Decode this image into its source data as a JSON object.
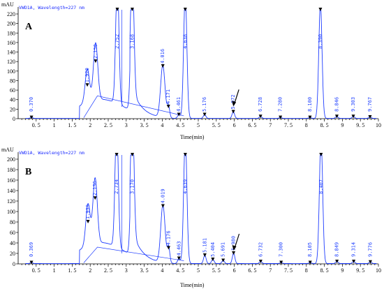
{
  "figure": {
    "y_unit": "mAU",
    "x_title": "Time(min)"
  },
  "chart_data": [
    {
      "panel": "A",
      "type": "line",
      "detector_label": "VWD1A, Wavelength=227 nm",
      "ylim": [
        0,
        220
      ],
      "xlim": [
        0,
        10
      ],
      "yticks": [
        0,
        20,
        40,
        60,
        80,
        100,
        120,
        140,
        160,
        180,
        200,
        220
      ],
      "xticks": [
        0.5,
        1,
        1.5,
        2,
        2.5,
        3,
        3.5,
        4,
        4.5,
        5,
        5.5,
        6,
        6.5,
        7,
        7.5,
        8,
        8.5,
        9,
        9.5,
        10
      ],
      "peaks": [
        {
          "label": "0.370",
          "rt": 0.37,
          "height": 2
        },
        {
          "label": "1.920",
          "rt": 1.92,
          "height": 70
        },
        {
          "label": "2.150",
          "rt": 2.15,
          "height": 120
        },
        {
          "label": "2.752",
          "rt": 2.752,
          "height": 260
        },
        {
          "label": "3.168",
          "rt": 3.168,
          "height": 260
        },
        {
          "label": "4.016",
          "rt": 4.016,
          "height": 110
        },
        {
          "label": "4.171",
          "rt": 4.171,
          "height": 25
        },
        {
          "label": "4.461",
          "rt": 4.461,
          "height": 8
        },
        {
          "label": "4.638",
          "rt": 4.638,
          "height": 260
        },
        {
          "label": "5.176",
          "rt": 5.176,
          "height": 8
        },
        {
          "label": "5.972",
          "rt": 5.972,
          "height": 14
        },
        {
          "label": "6.728",
          "rt": 6.728,
          "height": 4
        },
        {
          "label": "7.280",
          "rt": 7.28,
          "height": 2
        },
        {
          "label": "8.100",
          "rt": 8.1,
          "height": 2
        },
        {
          "label": "8.390",
          "rt": 8.39,
          "height": 240
        },
        {
          "label": "8.846",
          "rt": 8.846,
          "height": 4
        },
        {
          "label": "9.303",
          "rt": 9.303,
          "height": 4
        },
        {
          "label": "9.767",
          "rt": 9.767,
          "height": 3
        }
      ],
      "arrow_at": 5.972
    },
    {
      "panel": "B",
      "type": "line",
      "detector_label": "VWD1A, Wavelength=227 nm",
      "ylim": [
        0,
        200
      ],
      "xlim": [
        0,
        10
      ],
      "yticks": [
        0,
        20,
        40,
        60,
        80,
        100,
        120,
        140,
        160,
        180,
        200
      ],
      "xticks": [
        0.5,
        1,
        1.5,
        2,
        2.5,
        3,
        3.5,
        4,
        4.5,
        5,
        5.5,
        6,
        6.5,
        7,
        7.5,
        8,
        8.5,
        9,
        9.5,
        10
      ],
      "peaks": [
        {
          "label": "0.369",
          "rt": 0.369,
          "height": 2
        },
        {
          "label": "1.939",
          "rt": 1.939,
          "height": 80
        },
        {
          "label": "2.136",
          "rt": 2.136,
          "height": 125
        },
        {
          "label": "2.734",
          "rt": 2.734,
          "height": 240
        },
        {
          "label": "3.170",
          "rt": 3.17,
          "height": 240
        },
        {
          "label": "4.019",
          "rt": 4.019,
          "height": 110
        },
        {
          "label": "4.176",
          "rt": 4.176,
          "height": 30
        },
        {
          "label": "4.463",
          "rt": 4.463,
          "height": 10
        },
        {
          "label": "4.639",
          "rt": 4.639,
          "height": 240
        },
        {
          "label": "5.181",
          "rt": 5.181,
          "height": 16
        },
        {
          "label": "5.404",
          "rt": 5.404,
          "height": 8
        },
        {
          "label": "5.691",
          "rt": 5.691,
          "height": 6
        },
        {
          "label": "5.980",
          "rt": 5.98,
          "height": 20
        },
        {
          "label": "6.732",
          "rt": 6.732,
          "height": 4
        },
        {
          "label": "7.300",
          "rt": 7.3,
          "height": 2
        },
        {
          "label": "8.105",
          "rt": 8.105,
          "height": 2
        },
        {
          "label": "8.407",
          "rt": 8.407,
          "height": 240
        },
        {
          "label": "8.849",
          "rt": 8.849,
          "height": 4
        },
        {
          "label": "9.314",
          "rt": 9.314,
          "height": 4
        },
        {
          "label": "9.776",
          "rt": 9.776,
          "height": 3
        }
      ],
      "arrow_at": 5.98
    }
  ]
}
